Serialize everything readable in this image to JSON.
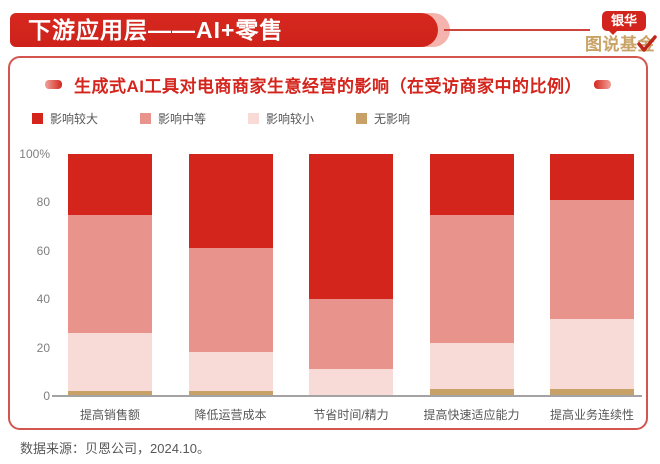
{
  "header": {
    "title": "下游应用层——AI+零售",
    "logo": {
      "badge": "银华",
      "name": "图说基金",
      "check_color": "#c0251c"
    }
  },
  "card": {
    "title": "生成式AI工具对电商商家生意经营的影响（在受访商家中的比例）"
  },
  "chart_data": {
    "type": "bar",
    "stacked": true,
    "title": "生成式AI工具对电商商家生意经营的影响（在受访商家中的比例）",
    "categories": [
      "提高销售额",
      "降低运营成本",
      "节省时间/精力",
      "提高快速适应能力",
      "提高业务连续性"
    ],
    "series": [
      {
        "name": "影响较大",
        "color": "#d4251d",
        "values": [
          25,
          39,
          60,
          25,
          19
        ]
      },
      {
        "name": "影响中等",
        "color": "#e8948d",
        "values": [
          49,
          43,
          29,
          53,
          49
        ]
      },
      {
        "name": "影响较小",
        "color": "#f8dad6",
        "values": [
          24,
          16,
          11,
          19,
          29
        ]
      },
      {
        "name": "无影响",
        "color": "#c8a169",
        "values": [
          2,
          2,
          0,
          3,
          3
        ]
      }
    ],
    "xlabel": "",
    "ylabel": "",
    "ylim": [
      0,
      100
    ],
    "yticks": [
      "100%",
      "80",
      "60",
      "40",
      "20",
      "0"
    ],
    "grid": false,
    "legend_position": "top-left"
  },
  "source": "数据来源：贝恩公司，2024.10。"
}
